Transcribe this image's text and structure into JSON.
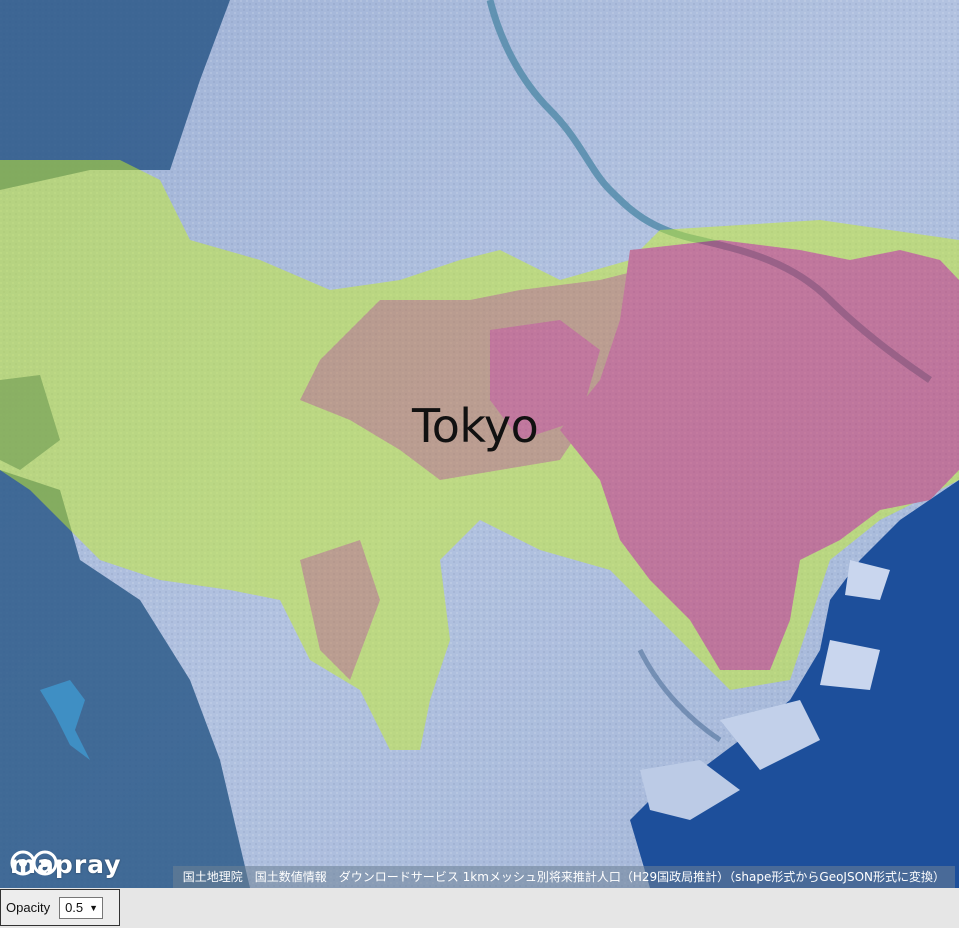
{
  "map": {
    "place_label": "Tokyo",
    "colors": {
      "land": "#a6b8d8",
      "urban": "#b9c8e2",
      "forest": "#2f5f8a",
      "water": "#1f4f9a",
      "river": "#5f8fb0",
      "overlay_low": "#9fb53e",
      "overlay_mid": "#a0844d",
      "overlay_high": "#b2475e"
    },
    "overlay_opacity": 0.5
  },
  "branding": {
    "logo_text": "mapray",
    "logo_icon": "owl-eyes-icon"
  },
  "attribution": {
    "text": "国土地理院　国土数値情報　ダウンロードサービス 1kmメッシュ別将来推計人口（H29国政局推計）（shape形式からGeoJSON形式に変換）"
  },
  "controls": {
    "opacity_label": "Opacity",
    "opacity_value": "0.5",
    "dropdown_icon": "chevron-down-icon"
  }
}
